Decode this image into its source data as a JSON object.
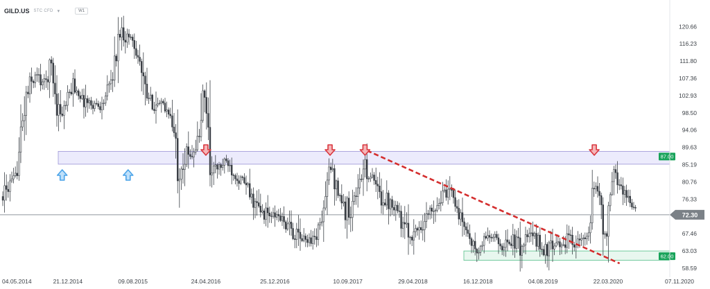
{
  "header": {
    "symbol": "GILD.US",
    "instrument_type": "STC CFD",
    "timeframe": "W1"
  },
  "colors": {
    "candle": "#3a3f45",
    "price_line": "#8f959c",
    "price_tag_bg": "#7b8187",
    "resistance_zone": "#e9e7fb",
    "resistance_border": "#9b94d6",
    "support_zone": "#e4f6ec",
    "support_border": "#55c08a",
    "zone_tag": "#18a35a",
    "down_arrow": "#d9363e",
    "up_arrow": "#4aa3e8",
    "trendline": "#d42d2d",
    "axis_text": "#3a3f45"
  },
  "chart_data": {
    "type": "candlestick",
    "title": "",
    "xlabel": "",
    "ylabel": "",
    "ylim": [
      57.5,
      125
    ],
    "x_ticks": [
      "04.05.2014",
      "21.12.2014",
      "09.08.2015",
      "24.04.2016",
      "25.12.2016",
      "10.09.2017",
      "29.04.2018",
      "16.12.2018",
      "04.08.2019",
      "22.03.2020",
      "07.11.2020"
    ],
    "y_ticks": [
      58.59,
      63.03,
      67.46,
      71.9,
      76.33,
      80.76,
      85.19,
      89.63,
      94.06,
      98.5,
      102.93,
      107.36,
      111.8,
      116.23,
      120.66
    ],
    "y_tick_labels": [
      "58.59",
      "63.03",
      "67.46",
      "",
      "76.33",
      "80.76",
      "85.19",
      "89.63",
      "94.06",
      "98.50",
      "102.93",
      "107.36",
      "111.80",
      "116.23",
      "120.66"
    ],
    "current_price": 72.3,
    "current_price_label": "72.30",
    "zones": [
      {
        "name": "resistance",
        "from": 85.3,
        "to": 88.6,
        "label": "87.00"
      },
      {
        "name": "support",
        "from": 60.6,
        "to": 63.0,
        "label": "62.00"
      }
    ],
    "down_arrows": [
      "24.04.2016",
      "09.07.2017",
      "10.11.2017",
      "02.02.2020"
    ],
    "up_arrows": [
      "01.12.2014",
      "23.07.2015"
    ],
    "trendline": {
      "from": [
        "17.11.2017",
        88.8
      ],
      "to": [
        "02.05.2020",
        59.8
      ]
    },
    "path": [
      [
        "04.05.2014",
        77
      ],
      [
        "20.06.2014",
        82
      ],
      [
        "20.07.2014",
        100
      ],
      [
        "10.08.2014",
        106
      ],
      [
        "01.09.2014",
        108
      ],
      [
        "01.10.2014",
        106
      ],
      [
        "25.10.2014",
        111
      ],
      [
        "10.11.2014",
        101
      ],
      [
        "01.12.2014",
        98
      ],
      [
        "10.01.2015",
        106
      ],
      [
        "10.02.2015",
        102
      ],
      [
        "10.03.2015",
        101
      ],
      [
        "20.04.2015",
        100
      ],
      [
        "20.05.2015",
        106
      ],
      [
        "10.06.2015",
        112
      ],
      [
        "25.06.2015",
        120
      ],
      [
        "15.07.2015",
        118
      ],
      [
        "05.08.2015",
        118
      ],
      [
        "01.09.2015",
        112
      ],
      [
        "20.09.2015",
        103
      ],
      [
        "15.11.2015",
        100
      ],
      [
        "15.12.2015",
        99
      ],
      [
        "01.01.2016",
        93
      ],
      [
        "15.01.2016",
        86
      ],
      [
        "01.03.2016",
        88
      ],
      [
        "01.04.2016",
        92
      ],
      [
        "10.04.2016",
        101
      ],
      [
        "24.04.2016",
        102
      ],
      [
        "10.05.2016",
        85
      ],
      [
        "01.06.2016",
        84
      ],
      [
        "10.07.2016",
        86
      ],
      [
        "10.08.2016",
        82
      ],
      [
        "10.09.2016",
        80
      ],
      [
        "10.10.2016",
        76
      ],
      [
        "01.11.2016",
        73
      ],
      [
        "10.12.2016",
        72
      ],
      [
        "10.01.2017",
        72
      ],
      [
        "10.02.2017",
        69
      ],
      [
        "10.03.2017",
        67
      ],
      [
        "01.04.2017",
        66
      ],
      [
        "15.05.2017",
        66
      ],
      [
        "05.06.2017",
        70
      ],
      [
        "20.06.2017",
        75
      ],
      [
        "09.07.2017",
        85
      ],
      [
        "01.08.2017",
        80
      ],
      [
        "01.09.2017",
        73
      ],
      [
        "01.10.2017",
        76
      ],
      [
        "20.10.2017",
        80
      ],
      [
        "10.11.2017",
        85
      ],
      [
        "01.12.2017",
        82
      ],
      [
        "01.01.2018",
        77
      ],
      [
        "01.03.2018",
        75
      ],
      [
        "01.04.2018",
        68
      ],
      [
        "25.04.2018",
        67
      ],
      [
        "01.06.2018",
        70
      ],
      [
        "15.07.2018",
        75
      ],
      [
        "15.08.2018",
        77
      ],
      [
        "20.09.2018",
        78
      ],
      [
        "01.10.2018",
        74
      ],
      [
        "01.11.2018",
        69
      ],
      [
        "20.11.2018",
        66
      ],
      [
        "16.12.2018",
        62
      ],
      [
        "15.01.2019",
        67
      ],
      [
        "15.02.2019",
        66
      ],
      [
        "15.03.2019",
        64
      ],
      [
        "15.04.2019",
        66
      ],
      [
        "15.05.2019",
        64
      ],
      [
        "15.06.2019",
        67
      ],
      [
        "15.07.2019",
        66
      ],
      [
        "04.08.2019",
        63
      ],
      [
        "15.09.2019",
        64
      ],
      [
        "15.10.2019",
        65
      ],
      [
        "15.11.2019",
        66
      ],
      [
        "15.12.2019",
        65
      ],
      [
        "15.01.2020",
        67
      ],
      [
        "02.02.2020",
        80
      ],
      [
        "20.02.2020",
        78
      ],
      [
        "01.03.2020",
        72
      ],
      [
        "15.03.2020",
        65
      ],
      [
        "01.04.2020",
        78
      ],
      [
        "15.04.2020",
        84
      ],
      [
        "01.05.2020",
        80
      ],
      [
        "20.05.2020",
        78
      ],
      [
        "10.06.2020",
        76
      ],
      [
        "30.06.2020",
        72
      ]
    ]
  }
}
